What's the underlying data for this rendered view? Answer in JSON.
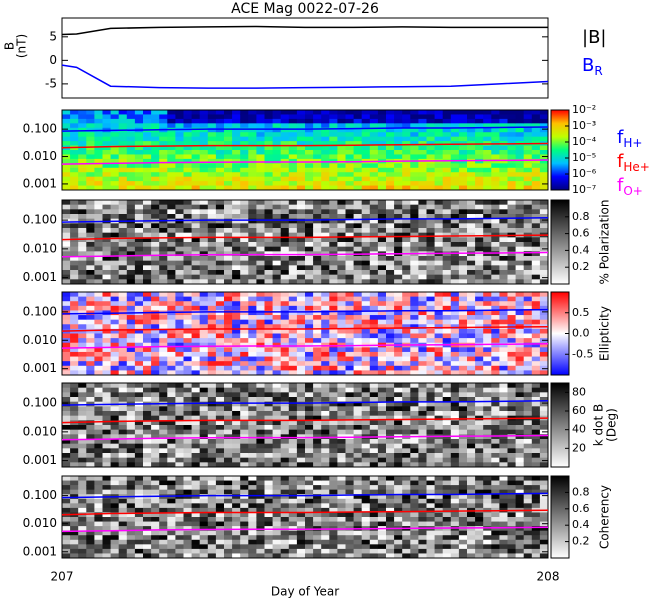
{
  "chart_data": [
    {
      "type": "line",
      "title": "ACE Mag 0022-07-26",
      "ylabel": [
        "B",
        "(nT)"
      ],
      "xlim": [
        207,
        208
      ],
      "ylim": [
        -8,
        9
      ],
      "yticks": [
        -5,
        0,
        5
      ],
      "x": [
        207,
        207.03,
        207.1,
        207.2,
        207.3,
        207.4,
        207.5,
        207.6,
        207.7,
        207.8,
        207.9,
        208
      ],
      "series": [
        {
          "name": "|B|",
          "color": "#000000",
          "values": [
            5.5,
            5.6,
            6.8,
            7,
            7.1,
            7.2,
            7,
            7,
            7.1,
            7,
            7,
            7
          ]
        },
        {
          "name": "B",
          "name_subscript": "R",
          "color": "#0000ff",
          "values": [
            -1,
            -1.5,
            -5.5,
            -5.8,
            -5.9,
            -5.9,
            -5.8,
            -5.7,
            -5.6,
            -5.5,
            -5,
            -4.5
          ]
        }
      ]
    },
    {
      "type": "spectrogram",
      "log_y": true,
      "xlim": [
        207,
        208
      ],
      "ylim": [
        0.0006,
        0.5
      ],
      "yticks": [
        0.001,
        {
          "value": 0.01,
          "label": "0.010"
        },
        {
          "value": 0.1,
          "label": "0.100"
        }
      ],
      "x": [
        207,
        207.1,
        207.2,
        207.3,
        207.4,
        207.5,
        207.6,
        207.7,
        207.8,
        207.9,
        208
      ],
      "series": [
        {
          "name": "f",
          "name_subscript": "H+",
          "color": "#0000ff",
          "values": [
            0.085,
            0.09,
            0.095,
            0.1,
            0.1,
            0.1,
            0.105,
            0.11,
            0.11,
            0.115,
            0.12
          ]
        },
        {
          "name": "f",
          "name_subscript": "He+",
          "color": "#ff0000",
          "values": [
            0.021,
            0.023,
            0.024,
            0.025,
            0.025,
            0.025,
            0.026,
            0.027,
            0.028,
            0.029,
            0.03
          ]
        },
        {
          "name": "f",
          "name_subscript": "O+",
          "color": "#ff00ff",
          "values": [
            0.0053,
            0.0056,
            0.006,
            0.0062,
            0.0063,
            0.0063,
            0.0065,
            0.0068,
            0.007,
            0.0072,
            0.0075
          ]
        }
      ],
      "colorbar": {
        "colors": [
          "#000080",
          "#0000ff",
          "#00c0ff",
          "#00ff80",
          "#c0ff00",
          "#ffc000",
          "#ff0000"
        ],
        "log": true,
        "lim": [
          1e-07,
          0.01
        ],
        "ticks": [
          {
            "value": 0.01,
            "label": "10⁻²"
          },
          {
            "value": 0.001,
            "label": "10⁻³"
          },
          {
            "value": 0.0001,
            "label": "10⁻⁴"
          },
          {
            "value": 1e-05,
            "label": "10⁻⁵"
          },
          {
            "value": 1e-06,
            "label": "10⁻⁶"
          },
          {
            "value": 1e-07,
            "label": "10⁻⁷"
          }
        ]
      }
    },
    {
      "type": "spectrogram",
      "log_y": true,
      "xlim": [
        207,
        208
      ],
      "ylim": [
        0.0006,
        0.5
      ],
      "yticks": [
        0.001,
        {
          "value": 0.01,
          "label": "0.010"
        },
        {
          "value": 0.1,
          "label": "0.100"
        }
      ],
      "x": [
        207,
        207.1,
        207.2,
        207.3,
        207.4,
        207.5,
        207.6,
        207.7,
        207.8,
        207.9,
        208
      ],
      "series": [
        {
          "color": "#0000ff",
          "values": [
            0.085,
            0.09,
            0.095,
            0.1,
            0.1,
            0.1,
            0.105,
            0.11,
            0.11,
            0.115,
            0.12
          ]
        },
        {
          "color": "#ff0000",
          "values": [
            0.021,
            0.023,
            0.024,
            0.025,
            0.025,
            0.025,
            0.026,
            0.027,
            0.028,
            0.029,
            0.03
          ]
        },
        {
          "color": "#ff00ff",
          "values": [
            0.0053,
            0.0056,
            0.006,
            0.0062,
            0.0063,
            0.0063,
            0.0065,
            0.0068,
            0.007,
            0.0072,
            0.0075
          ]
        }
      ],
      "colorbar": {
        "colors": [
          "#ffffff",
          "#000000"
        ],
        "lim": [
          0,
          1
        ],
        "ticks": [
          0.2,
          0.4,
          0.6,
          0.8
        ],
        "label": [
          "% Polarization"
        ]
      }
    },
    {
      "type": "spectrogram",
      "log_y": true,
      "xlim": [
        207,
        208
      ],
      "ylim": [
        0.0006,
        0.5
      ],
      "yticks": [
        0.001,
        {
          "value": 0.01,
          "label": "0.010"
        },
        {
          "value": 0.1,
          "label": "0.100"
        }
      ],
      "x": [
        207,
        207.1,
        207.2,
        207.3,
        207.4,
        207.5,
        207.6,
        207.7,
        207.8,
        207.9,
        208
      ],
      "series": [
        {
          "color": "#0000ff",
          "values": [
            0.085,
            0.09,
            0.095,
            0.1,
            0.1,
            0.1,
            0.105,
            0.11,
            0.11,
            0.115,
            0.12
          ]
        },
        {
          "color": "#ff0000",
          "values": [
            0.021,
            0.023,
            0.024,
            0.025,
            0.025,
            0.025,
            0.026,
            0.027,
            0.028,
            0.029,
            0.03
          ]
        },
        {
          "color": "#ff00ff",
          "values": [
            0.0053,
            0.0056,
            0.006,
            0.0062,
            0.0063,
            0.0063,
            0.0065,
            0.0068,
            0.007,
            0.0072,
            0.0075
          ]
        }
      ],
      "colorbar": {
        "colors": [
          "#0000ff",
          "#ffffff",
          "#ff0000"
        ],
        "lim": [
          -1,
          1
        ],
        "ticks": [
          {
            "value": 0.5,
            "label": "0.5"
          },
          {
            "value": 0,
            "label": "0.0"
          },
          {
            "value": -0.5,
            "label": "-0.5"
          }
        ],
        "label": [
          "Ellipticity"
        ]
      }
    },
    {
      "type": "spectrogram",
      "log_y": true,
      "xlim": [
        207,
        208
      ],
      "ylim": [
        0.0006,
        0.5
      ],
      "yticks": [
        0.001,
        {
          "value": 0.01,
          "label": "0.010"
        },
        {
          "value": 0.1,
          "label": "0.100"
        }
      ],
      "x": [
        207,
        207.1,
        207.2,
        207.3,
        207.4,
        207.5,
        207.6,
        207.7,
        207.8,
        207.9,
        208
      ],
      "series": [
        {
          "color": "#0000ff",
          "values": [
            0.085,
            0.09,
            0.095,
            0.1,
            0.1,
            0.1,
            0.105,
            0.11,
            0.11,
            0.115,
            0.12
          ]
        },
        {
          "color": "#ff0000",
          "values": [
            0.021,
            0.023,
            0.024,
            0.025,
            0.025,
            0.025,
            0.026,
            0.027,
            0.028,
            0.029,
            0.03
          ]
        },
        {
          "color": "#ff00ff",
          "values": [
            0.0053,
            0.0056,
            0.006,
            0.0062,
            0.0063,
            0.0063,
            0.0065,
            0.0068,
            0.007,
            0.0072,
            0.0075
          ]
        }
      ],
      "colorbar": {
        "colors": [
          "#ffffff",
          "#000000"
        ],
        "lim": [
          0,
          90
        ],
        "ticks": [
          20,
          40,
          60,
          80
        ],
        "label": [
          "k dot B",
          "(Deg)"
        ]
      }
    },
    {
      "type": "spectrogram",
      "log_y": true,
      "xlim": [
        207,
        208
      ],
      "ylim": [
        0.0006,
        0.5
      ],
      "yticks": [
        0.001,
        {
          "value": 0.01,
          "label": "0.010"
        },
        {
          "value": 0.1,
          "label": "0.100"
        }
      ],
      "x": [
        207,
        207.1,
        207.2,
        207.3,
        207.4,
        207.5,
        207.6,
        207.7,
        207.8,
        207.9,
        208
      ],
      "xticks": [
        207,
        208
      ],
      "xlabel": "Day of Year",
      "series": [
        {
          "color": "#0000ff",
          "values": [
            0.085,
            0.09,
            0.095,
            0.1,
            0.1,
            0.1,
            0.105,
            0.11,
            0.11,
            0.115,
            0.12
          ]
        },
        {
          "color": "#ff0000",
          "values": [
            0.021,
            0.023,
            0.024,
            0.025,
            0.025,
            0.025,
            0.026,
            0.027,
            0.028,
            0.029,
            0.03
          ]
        },
        {
          "color": "#ff00ff",
          "values": [
            0.0053,
            0.0056,
            0.006,
            0.0062,
            0.0063,
            0.0063,
            0.0065,
            0.0068,
            0.007,
            0.0072,
            0.0075
          ]
        }
      ],
      "colorbar": {
        "colors": [
          "#ffffff",
          "#000000"
        ],
        "lim": [
          0,
          1
        ],
        "ticks": [
          0.2,
          0.4,
          0.6,
          0.8
        ],
        "label": [
          "Coherency"
        ]
      }
    }
  ]
}
